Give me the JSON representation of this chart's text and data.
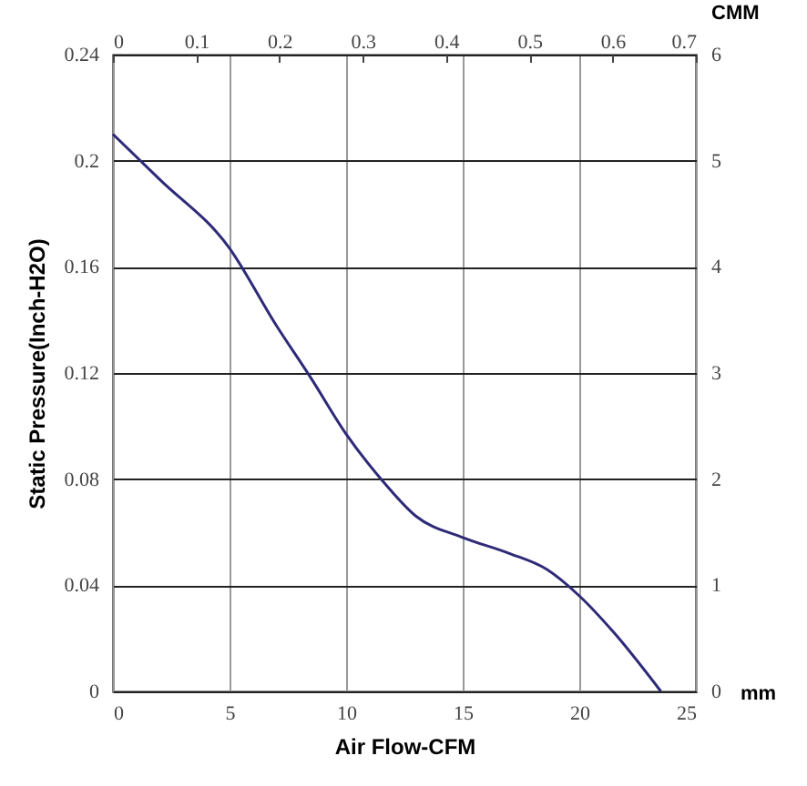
{
  "chart_data": {
    "type": "line",
    "xlabel": "Air Flow-CFM",
    "ylabel": "Static Pressure(Inch-H2O)",
    "x2label": "CMM",
    "y2label": "mm",
    "x": [
      0,
      2,
      5,
      7,
      8.5,
      10,
      11.5,
      13,
      15,
      17,
      18.6,
      20,
      21.5,
      23.5
    ],
    "series": [
      {
        "color": "#2e2a78",
        "values": [
          0.21,
          0.193,
          0.167,
          0.138,
          0.118,
          0.097,
          0.08,
          0.066,
          0.058,
          0.052,
          0.046,
          0.036,
          0.022,
          0
        ]
      }
    ],
    "xlim": [
      0,
      25
    ],
    "xticks": [
      0,
      5,
      10,
      15,
      20,
      25
    ],
    "ylim": [
      0,
      0.24
    ],
    "yticks": [
      0,
      0.04,
      0.08,
      0.12,
      0.16,
      0.2,
      0.24
    ],
    "x2lim": [
      0,
      0.7
    ],
    "x2ticks": [
      0,
      0.1,
      0.2,
      0.3,
      0.4,
      0.5,
      0.6,
      0.7
    ],
    "y2lim": [
      0,
      6
    ],
    "y2ticks": [
      0,
      1,
      2,
      3,
      4,
      5,
      6
    ],
    "grid": true,
    "marker": "none",
    "line_style": "solid"
  }
}
